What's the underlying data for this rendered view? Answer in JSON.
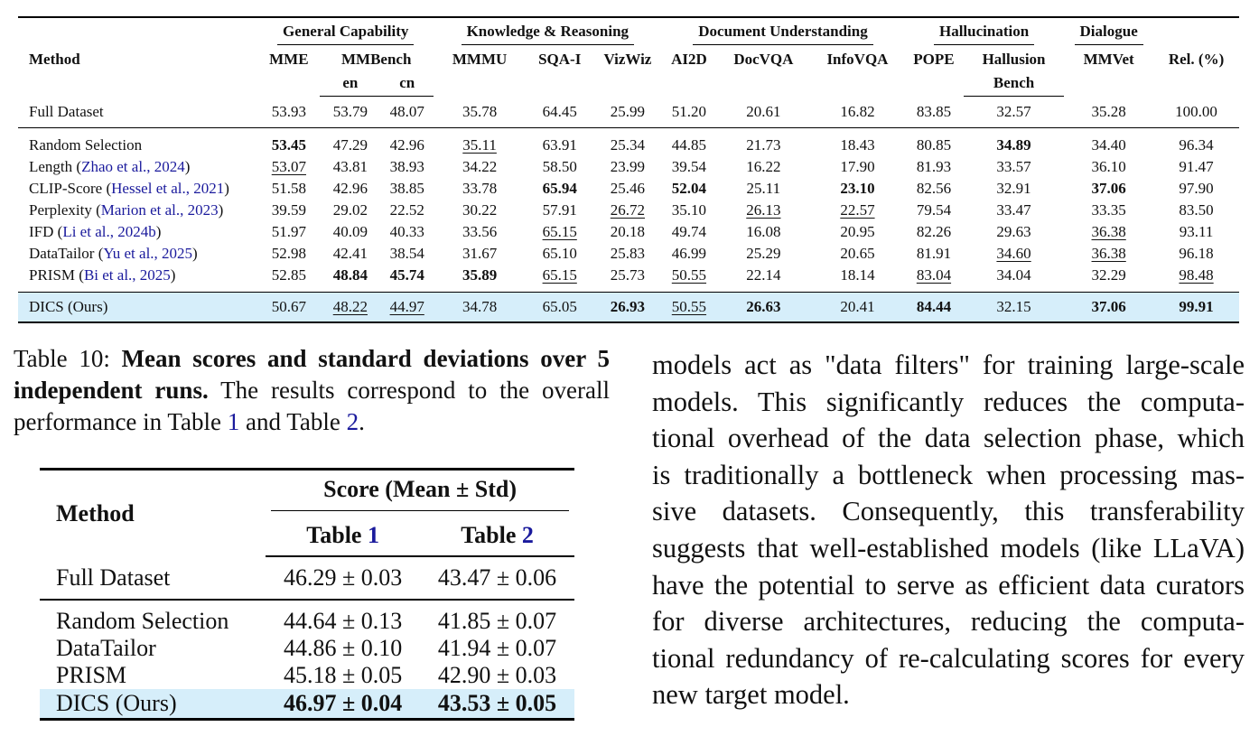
{
  "main_table": {
    "group_headers": [
      "General Capability",
      "Knowledge & Reasoning",
      "Document Understanding",
      "Hallucination",
      "Dialogue"
    ],
    "method_header": "Method",
    "col_headers": {
      "mme": "MME",
      "mmbench": "MMBench",
      "mmbench_en": "en",
      "mmbench_cn": "cn",
      "mmmu": "MMMU",
      "sqai": "SQA-I",
      "vizwiz": "VizWiz",
      "ai2d": "AI2D",
      "docvqa": "DocVQA",
      "infovqa": "InfoVQA",
      "pope": "POPE",
      "hallusion_1": "Hallusion",
      "hallusion_2": "Bench",
      "mmvet": "MMVet",
      "rel": "Rel. (%)"
    },
    "full_dataset": {
      "method": "Full Dataset",
      "values": [
        "53.93",
        "53.79",
        "48.07",
        "35.78",
        "64.45",
        "25.99",
        "51.20",
        "20.61",
        "16.82",
        "83.85",
        "32.57",
        "35.28",
        "100.00"
      ]
    },
    "baselines": [
      {
        "name": "Random Selection",
        "cite": "",
        "values": [
          "53.45",
          "47.29",
          "42.96",
          "35.11",
          "63.91",
          "25.34",
          "44.85",
          "21.73",
          "18.43",
          "80.85",
          "34.89",
          "34.40",
          "96.34"
        ]
      },
      {
        "name": "Length (",
        "cite": "Zhao et al., 2024",
        "close": ")",
        "values": [
          "53.07",
          "43.81",
          "38.93",
          "34.22",
          "58.50",
          "23.99",
          "39.54",
          "16.22",
          "17.90",
          "81.93",
          "33.57",
          "36.10",
          "91.47"
        ]
      },
      {
        "name": "CLIP-Score (",
        "cite": "Hessel et al., 2021",
        "close": ")",
        "values": [
          "51.58",
          "42.96",
          "38.85",
          "33.78",
          "65.94",
          "25.46",
          "52.04",
          "25.11",
          "23.10",
          "82.56",
          "32.91",
          "37.06",
          "97.90"
        ]
      },
      {
        "name": "Perplexity (",
        "cite": "Marion et al., 2023",
        "close": ")",
        "values": [
          "39.59",
          "29.02",
          "22.52",
          "30.22",
          "57.91",
          "26.72",
          "35.10",
          "26.13",
          "22.57",
          "79.54",
          "33.47",
          "33.35",
          "83.50"
        ]
      },
      {
        "name": "IFD (",
        "cite": "Li et al., 2024b",
        "close": ")",
        "values": [
          "51.97",
          "40.09",
          "40.33",
          "33.56",
          "65.15",
          "20.18",
          "49.74",
          "16.08",
          "20.95",
          "82.26",
          "29.63",
          "36.38",
          "93.11"
        ]
      },
      {
        "name": "DataTailor (",
        "cite": "Yu et al., 2025",
        "close": ")",
        "values": [
          "52.98",
          "42.41",
          "38.54",
          "31.67",
          "65.10",
          "25.83",
          "46.99",
          "25.29",
          "20.65",
          "81.91",
          "34.60",
          "36.38",
          "96.18"
        ]
      },
      {
        "name": "PRISM (",
        "cite": "Bi et al., 2025",
        "close": ")",
        "values": [
          "52.85",
          "48.84",
          "45.74",
          "35.89",
          "65.15",
          "25.73",
          "50.55",
          "22.14",
          "18.14",
          "83.04",
          "34.04",
          "32.29",
          "98.48"
        ]
      }
    ],
    "ours": {
      "method": "DICS (Ours)",
      "values": [
        "50.67",
        "48.22",
        "44.97",
        "34.78",
        "65.05",
        "26.93",
        "50.55",
        "26.63",
        "20.41",
        "84.44",
        "32.15",
        "37.06",
        "99.91"
      ]
    }
  },
  "caption": {
    "prefix": "Table 10:",
    "bold": "Mean scores and standard deviations over 5 independent runs.",
    "rest_1": "The results correspond to the overall performance in Table",
    "ref_1": "1",
    "rest_2": "and Table",
    "ref_2": "2",
    "end": "."
  },
  "small_table": {
    "method_header": "Method",
    "group_header": "Score (Mean ± Std)",
    "col_1_prefix": "Table",
    "col_1_ref": "1",
    "col_2_prefix": "Table",
    "col_2_ref": "2",
    "full": {
      "method": "Full Dataset",
      "t1": "46.29 ± 0.03",
      "t2": "43.47 ± 0.06"
    },
    "rows": [
      {
        "method": "Random Selection",
        "t1": "44.64 ± 0.13",
        "t2": "41.85 ± 0.07"
      },
      {
        "method": "DataTailor",
        "t1": "44.86 ± 0.10",
        "t2": "41.94 ± 0.07"
      },
      {
        "method": "PRISM",
        "t1": "45.18 ± 0.05",
        "t2": "42.90 ± 0.03"
      }
    ],
    "ours": {
      "method": "DICS (Ours)",
      "t1": "46.97 ± 0.04",
      "t2": "43.53 ± 0.05"
    }
  },
  "body_text": {
    "l1": "models act as \"data filters\" for training large-scale",
    "l2": "models.  This significantly reduces the computa-",
    "l3": "tional overhead of the data selection phase, which",
    "l4": "is traditionally a bottleneck when processing mas-",
    "l5": "sive datasets.  Consequently, this transferability",
    "l6": "suggests that well-established models (like LLaVA)",
    "l7": "have the potential to serve as efficient data curators",
    "l8": "for diverse architectures, reducing the computa-",
    "l9": "tional redundancy of re-calculating scores for every",
    "l10": "new target model."
  }
}
